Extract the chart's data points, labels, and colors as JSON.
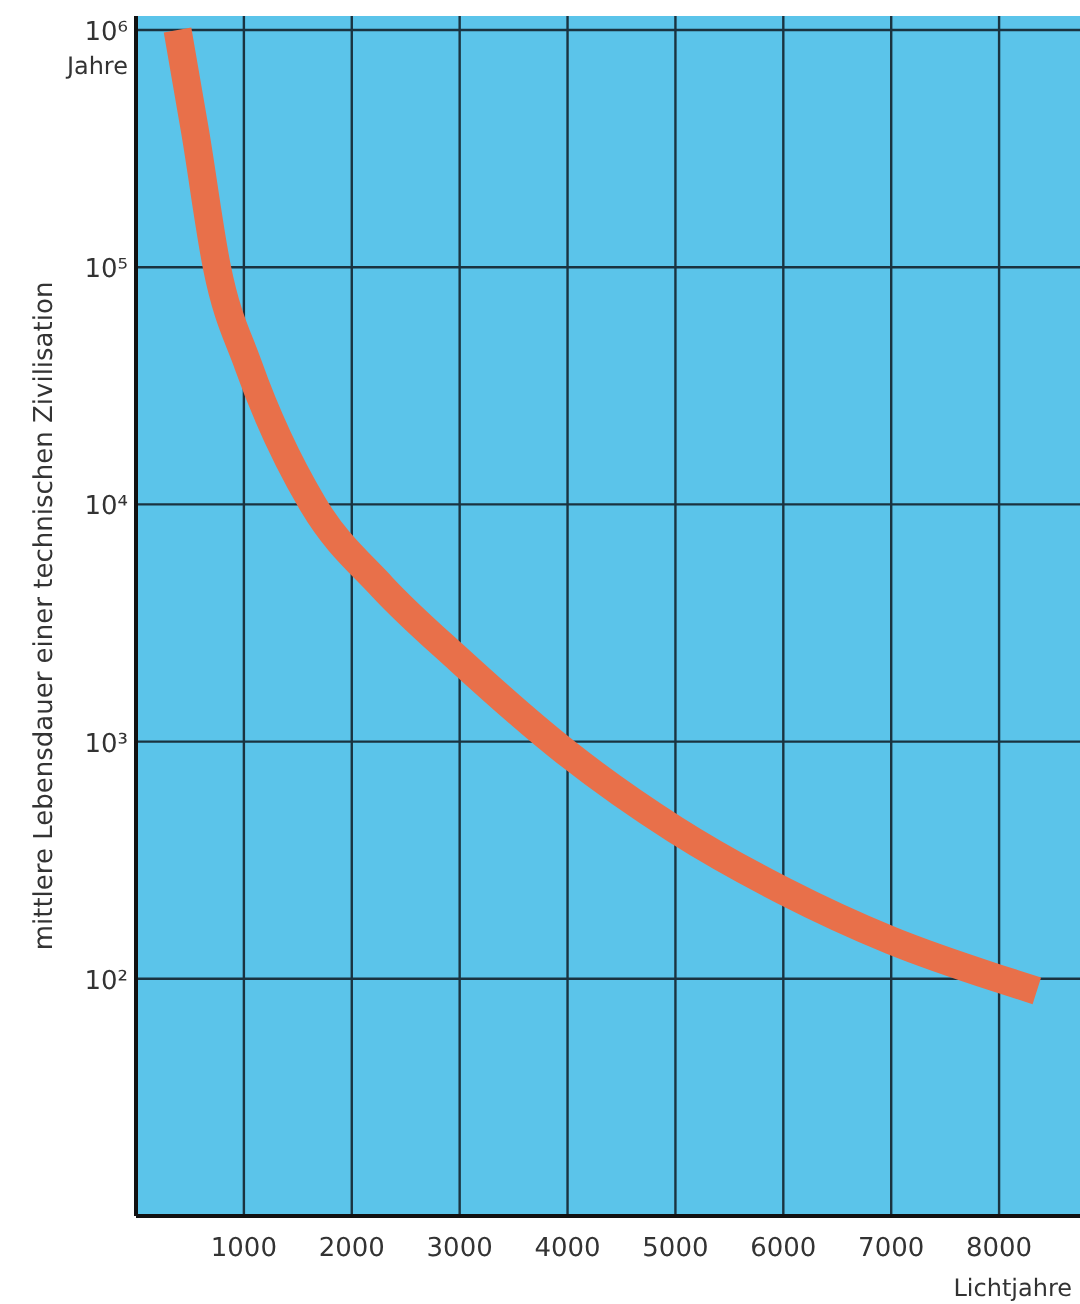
{
  "chart_data": {
    "type": "line",
    "xlabel": "Lichtjahre",
    "ylabel": "mittlere Lebensdauer einer technischen Zivilisation",
    "annotations": [
      "Jahre"
    ],
    "log": "y",
    "grid": true,
    "marker": "none",
    "line_style": "solid",
    "xlim": [
      0,
      8750
    ],
    "xticks": [
      1000,
      2000,
      3000,
      4000,
      5000,
      6000,
      7000,
      8000
    ],
    "ylim": [
      10,
      1000000
    ],
    "yticks": [
      {
        "value": 100,
        "label": "10²"
      },
      {
        "value": 1000,
        "label": "10³"
      },
      {
        "value": 10000,
        "label": "10⁴"
      },
      {
        "value": 100000,
        "label": "10⁵"
      },
      {
        "value": 1000000,
        "label": "10⁶"
      }
    ],
    "series": [
      {
        "color": "#e8704a",
        "x": [
          385,
          550,
          750,
          1040,
          1640,
          2280,
          3000,
          4000,
          5000,
          6000,
          7000,
          8000,
          8350
        ],
        "values": [
          1000000,
          368000,
          100000,
          38700,
          10000,
          4500,
          2200,
          890,
          425,
          235,
          145,
          100,
          89
        ]
      }
    ]
  }
}
